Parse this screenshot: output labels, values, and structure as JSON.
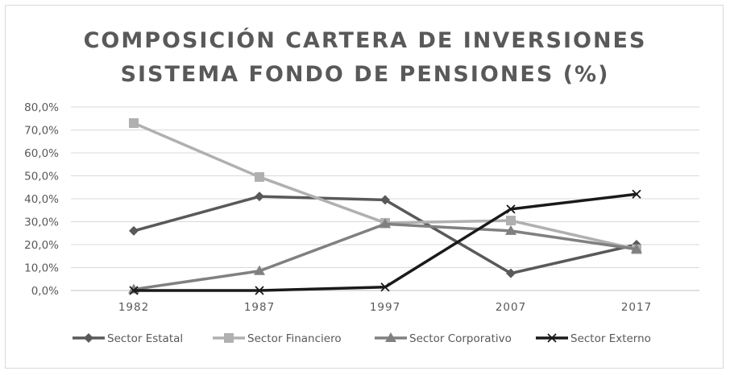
{
  "chart_data": {
    "type": "line",
    "title_lines": [
      "COMPOSICIÓN CARTERA DE INVERSIONES",
      "SISTEMA FONDO DE PENSIONES (%)"
    ],
    "categories": [
      "1982",
      "1987",
      "1997",
      "2007",
      "2017"
    ],
    "ylim": [
      0,
      80
    ],
    "yticks": [
      "0,0%",
      "10,0%",
      "20,0%",
      "30,0%",
      "40,0%",
      "50,0%",
      "60,0%",
      "70,0%",
      "80,0%"
    ],
    "grid": true,
    "legend_position": "bottom",
    "series": [
      {
        "name": "Sector Estatal",
        "values": [
          26.0,
          41.0,
          39.5,
          7.5,
          20.0
        ],
        "color": "#595959",
        "marker": "diamond"
      },
      {
        "name": "Sector Financiero",
        "values": [
          73.0,
          49.5,
          29.5,
          30.5,
          18.0
        ],
        "color": "#b0b0b0",
        "marker": "square"
      },
      {
        "name": "Sector Corporativo",
        "values": [
          0.5,
          8.5,
          29.0,
          26.0,
          18.0
        ],
        "color": "#808080",
        "marker": "triangle"
      },
      {
        "name": "Sector Externo",
        "values": [
          0.0,
          0.0,
          1.5,
          35.5,
          42.0
        ],
        "color": "#1a1a1a",
        "marker": "x"
      }
    ]
  }
}
